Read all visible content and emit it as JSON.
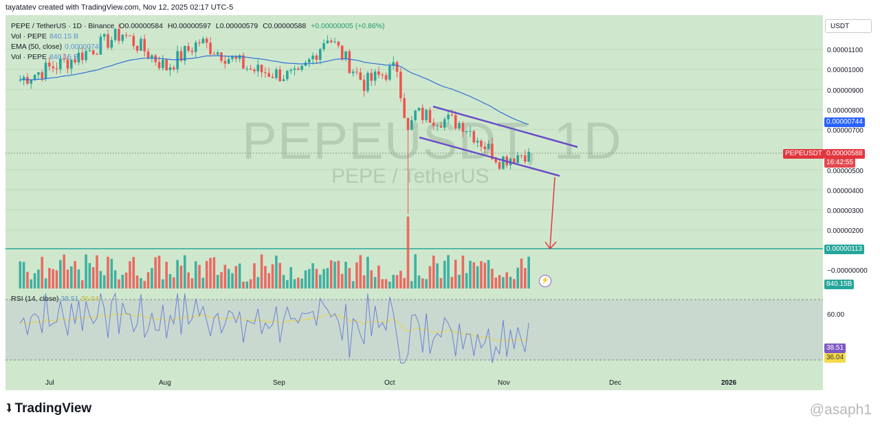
{
  "header": "tayatatev created with TradingView.com, Nov 12, 2025 02:17 UTC-5",
  "legend": {
    "symbol": "PEPE / TetherUS · 1D · Binance",
    "o": "O0.00000584",
    "h": "H0.00000597",
    "l": "L0.00000579",
    "c": "C0.00000588",
    "chg": "+0.00000005 (+0.86%)",
    "vol_label": "Vol · PEPE",
    "vol_value": "840.15 B",
    "ema_label": "EMA (50, close)",
    "ema_value": "0.00000744",
    "vol2_label": "Vol · PEPE",
    "vol2_value": "840.15 B"
  },
  "currency_button": "USDT",
  "watermark": {
    "symbol": "PEPEUSDT, 1D",
    "name": "PEPE / TetherUS"
  },
  "price_axis": [
    "0.00001100",
    "0.00001000",
    "0.00000900",
    "0.00000800",
    "0.00000700",
    "0.00000500",
    "0.00000400",
    "0.00000300",
    "0.00000200",
    "−0.00000000"
  ],
  "tags": {
    "ema": "0.00000744",
    "symbol": "PEPEUSDT",
    "price": "0.00000588",
    "countdown": "16:42:55",
    "support": "0.00000113",
    "volume": "840.15B",
    "rsi": "38.51",
    "rsi_ma": "36.04"
  },
  "rsi_legend": {
    "label": "RSI (14, close)",
    "v1": "38.51",
    "v2": "36.04"
  },
  "rsi_axis": "60.00",
  "time_axis": [
    "Jul",
    "Aug",
    "Sep",
    "Oct",
    "Nov",
    "Dec",
    "2026"
  ],
  "footer": {
    "logo": "TradingView",
    "handle": "@asaph1"
  },
  "colors": {
    "up": "#26a69a",
    "down": "#ef5350",
    "ema": "#2f6fd6",
    "channel": "#6a4bc8",
    "arrow": "#e2353d",
    "rsi": "#6d7fd6",
    "rsi_ma": "#e6d35a",
    "bg": "#cfe8cd"
  },
  "chart_data": {
    "type": "candlestick",
    "title": "PEPE / TetherUS · 1D · Binance",
    "ylabel": "USDT",
    "ylim": [
      0,
      1.18e-05
    ],
    "x": [
      "Jul",
      "Aug",
      "Sep",
      "Oct",
      "Nov",
      "Dec",
      "2026"
    ],
    "close_series_sample": [
      {
        "date": "2025-06-26",
        "close": 9.5e-06
      },
      {
        "date": "2025-07-10",
        "close": 1.05e-05
      },
      {
        "date": "2025-07-24",
        "close": 1.18e-05
      },
      {
        "date": "2025-08-05",
        "close": 1.01e-05
      },
      {
        "date": "2025-08-14",
        "close": 1.14e-05
      },
      {
        "date": "2025-08-28",
        "close": 1e-05
      },
      {
        "date": "2025-09-10",
        "close": 9.6e-06
      },
      {
        "date": "2025-09-18",
        "close": 1.17e-05
      },
      {
        "date": "2025-09-28",
        "close": 9.3e-06
      },
      {
        "date": "2025-10-07",
        "close": 1.01e-05
      },
      {
        "date": "2025-10-10",
        "close": 6.8e-06
      },
      {
        "date": "2025-10-12",
        "close": 7.8e-06
      },
      {
        "date": "2025-10-25",
        "close": 7.3e-06
      },
      {
        "date": "2025-11-04",
        "close": 5.5e-06
      },
      {
        "date": "2025-11-12",
        "close": 5.9e-06
      }
    ],
    "last": {
      "open": 5.84e-06,
      "high": 5.97e-06,
      "low": 5.79e-06,
      "close": 5.88e-06
    },
    "ema50_last": 7.44e-06,
    "support_level": 1.13e-06,
    "volume_last": "840.15B",
    "rsi_last": 38.51,
    "rsi_ma_last": 36.04
  }
}
